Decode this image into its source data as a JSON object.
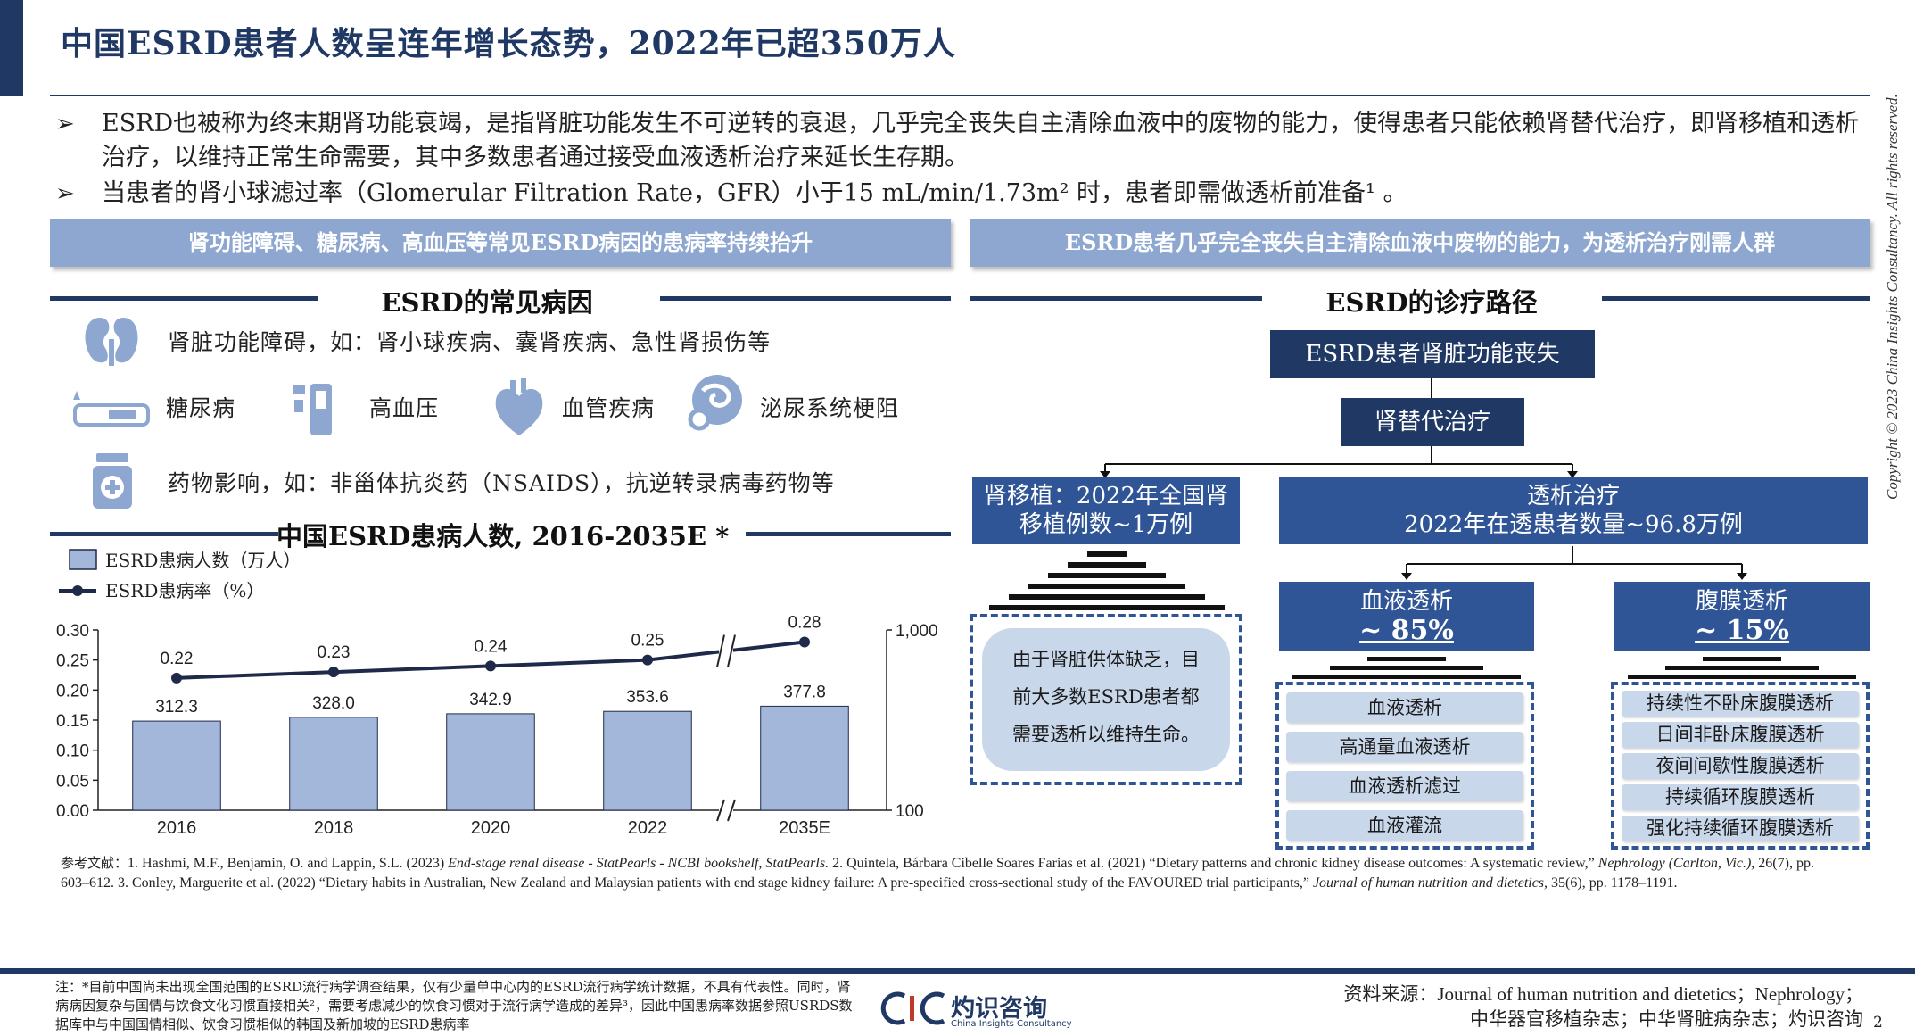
{
  "title": "中国ESRD患者人数呈连年增长态势，2022年已超350万人",
  "bullets": [
    "ESRD也被称为终末期肾功能衰竭，是指肾脏功能发生不可逆转的衰退，几乎完全丧失自主清除血液中的废物的能力，使得患者只能依赖肾替代治疗，即肾移植和透析治疗，以维持正常生命需要，其中多数患者通过接受血液透析治疗来延长生存期。",
    "当患者的肾小球滤过率（Glomerular Filtration Rate，GFR）小于15 mL/min/1.73m² 时，患者即需做透析前准备¹ 。"
  ],
  "bullet_glyph": "➢",
  "left_band": "肾功能障碍、糖尿病、高血压等常见ESRD病因的患病率持续抬升",
  "right_band": "ESRD患者几乎完全丧失自主清除血液中废物的能力，为透析治疗刚需人群",
  "causes": {
    "heading": "ESRD的常见病因",
    "kidney": "肾脏功能障碍，如：肾小球疾病、囊肾疾病、急性肾损伤等",
    "diabetes": "糖尿病",
    "hypertension": "高血压",
    "vascular": "血管疾病",
    "urinary": "泌尿系统梗阻",
    "drug": "药物影响，如：非甾体抗炎药（NSAIDS），抗逆转录病毒药物等"
  },
  "chart_heading": "中国ESRD患病人数, 2016-2035E *",
  "chart_data": {
    "type": "bar",
    "categories": [
      "2016",
      "2018",
      "2020",
      "2022",
      "2035E"
    ],
    "series": [
      {
        "name": "ESRD患病人数（万人）",
        "type": "bar",
        "axis": "right",
        "values": [
          312.3,
          328.0,
          342.9,
          353.6,
          377.8
        ],
        "labels": [
          "312.3",
          "328.0",
          "342.9",
          "353.6",
          "377.8"
        ]
      },
      {
        "name": "ESRD患病率（%）",
        "type": "line",
        "axis": "left",
        "values": [
          0.22,
          0.23,
          0.24,
          0.25,
          0.28
        ],
        "labels": [
          "0.22",
          "0.23",
          "0.24",
          "0.25",
          "0.28"
        ]
      }
    ],
    "left_ticks": [
      "0.30",
      "0.25",
      "0.20",
      "0.15",
      "0.10",
      "0.05",
      "0.00"
    ],
    "left_lim": [
      0,
      0.3
    ],
    "right_ticks": [
      "1,000",
      "100"
    ],
    "right_lim": [
      100,
      1000
    ],
    "right_scale": "log",
    "axis_break": "between 2022 and 2035E",
    "legend_placement": "top-left",
    "bar_color": "#a3b7da",
    "line_color": "#1f2a4a"
  },
  "pathway": {
    "heading": "ESRD的诊疗路径",
    "root": "ESRD患者肾脏功能丧失",
    "replacement": "肾替代治疗",
    "transplant_line1": "肾移植：2022年全国肾",
    "transplant_line2": "移植例数~1万例",
    "dialysis_line1": "透析治疗",
    "dialysis_line2": "2022年在透患者数量~96.8万例",
    "hemo_label": "血液透析",
    "hemo_pct": "~ 85%",
    "peritoneal_label": "腹膜透析",
    "peritoneal_pct": "~ 15%",
    "shortage_line1": "由于肾脏供体缺乏，目",
    "shortage_line2": "前大多数ESRD患者都",
    "shortage_line3": "需要透析以维持生命。",
    "hemo_items": [
      "血液透析",
      "高通量血液透析",
      "血液透析滤过",
      "血液灌流"
    ],
    "peritoneal_items": [
      "持续性不卧床腹膜透析",
      "日间非卧床腹膜透析",
      "夜间间歇性腹膜透析",
      "持续循环腹膜透析",
      "强化持续循环腹膜透析"
    ]
  },
  "references": {
    "label": "参考文献：",
    "r1_pre": "1. Hashmi, M.F., Benjamin, O. and Lappin, S.L. (2023) ",
    "r1_italic": "End-stage renal disease - StatPearls - NCBI bookshelf, StatPearls.",
    "r2_pre": " 2. Quintela, Bárbara Cibelle Soares Farias et al. (2021) “Dietary patterns and chronic kidney disease outcomes: A systematic review,” ",
    "r2_italic": "Nephrology (Carlton, Vic.),",
    "r2_post": " 26(7), pp. 603–612. 3. Conley, Marguerite et al. (2022) “Dietary habits in Australian, New Zealand and Malaysian patients with end stage kidney failure: A pre-specified cross-sectional study of the FAVOURED trial participants,” ",
    "r3_italic": "Journal of human nutrition and dietetics,",
    "r3_post": " 35(6), pp. 1178–1191."
  },
  "note": "注：*目前中国尚未出现全国范围的ESRD流行病学调查结果，仅有少量单中心内的ESRD流行病学统计数据，不具有代表性。同时，肾病病因复杂与国情与饮食文化习惯直接相关²，需要考虑减少的饮食习惯对于流行病学造成的差异³，因此中国患病率数据参照USRDS数据库中与中国国情相似、饮食习惯相似的韩国及新加坡的ESRD患病率",
  "logo": {
    "mark": "CIC",
    "name": "灼识咨询",
    "sub": "China Insights Consultancy"
  },
  "source_line1": "资料来源：Journal of human nutrition and dietetics；Nephrology；",
  "source_line2": "中华器官移植杂志；中华肾脏病杂志；灼识咨询",
  "page_number": "2",
  "copyright": "Copyright © 2023 China Insights Consultancy. All rights reserved."
}
